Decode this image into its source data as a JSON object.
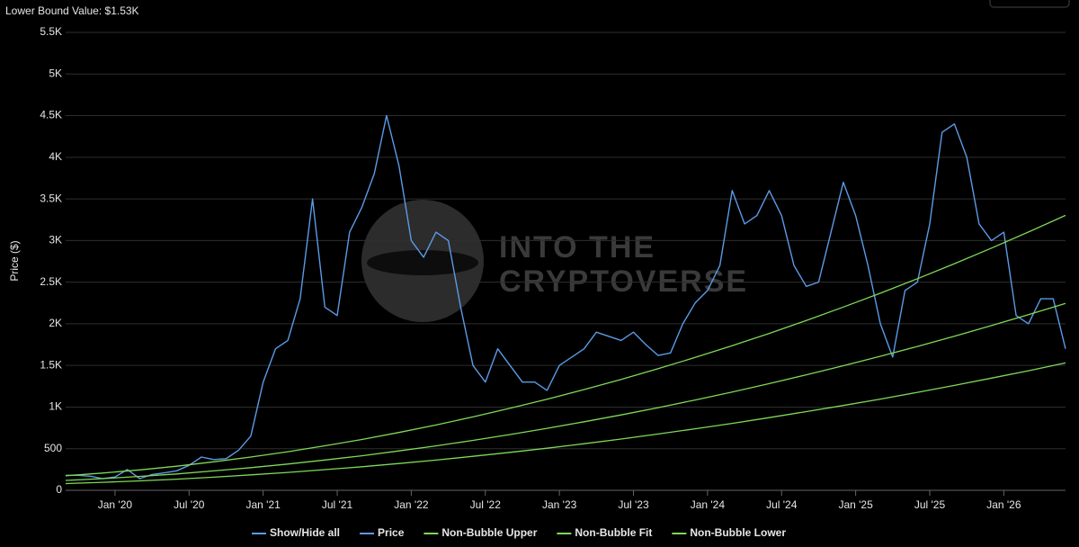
{
  "chart_data": {
    "type": "line",
    "title": "Lower Bound Value: $1.53K",
    "ylabel": "Price ($)",
    "watermark": [
      "INTO THE",
      "CRYPTOVERSE"
    ],
    "legend_toggle_label": "Show/Hide all",
    "legend_position": "bottom",
    "grid": true,
    "xlim": [
      "2019-09",
      "2026-06"
    ],
    "xticks": [
      {
        "value": "2020-01",
        "label": "Jan '20"
      },
      {
        "value": "2020-07",
        "label": "Jul '20"
      },
      {
        "value": "2021-01",
        "label": "Jan '21"
      },
      {
        "value": "2021-07",
        "label": "Jul '21"
      },
      {
        "value": "2022-01",
        "label": "Jan '22"
      },
      {
        "value": "2022-07",
        "label": "Jul '22"
      },
      {
        "value": "2023-01",
        "label": "Jan '23"
      },
      {
        "value": "2023-07",
        "label": "Jul '23"
      },
      {
        "value": "2024-01",
        "label": "Jan '24"
      },
      {
        "value": "2024-07",
        "label": "Jul '24"
      },
      {
        "value": "2025-01",
        "label": "Jan '25"
      },
      {
        "value": "2025-07",
        "label": "Jul '25"
      },
      {
        "value": "2026-01",
        "label": "Jan '26"
      }
    ],
    "ylim": [
      0,
      5500
    ],
    "yticks": [
      0,
      500,
      {
        "value": 1000,
        "label": "1K"
      },
      {
        "value": 1500,
        "label": "1.5K"
      },
      {
        "value": 2000,
        "label": "2K"
      },
      {
        "value": 2500,
        "label": "2.5K"
      },
      {
        "value": 3000,
        "label": "3K"
      },
      {
        "value": 3500,
        "label": "3.5K"
      },
      {
        "value": 4000,
        "label": "4K"
      },
      {
        "value": 4500,
        "label": "4.5K"
      },
      {
        "value": 5000,
        "label": "5K"
      },
      {
        "value": 5500,
        "label": "5.5K"
      }
    ],
    "series": [
      {
        "name": "Price",
        "color": "#5b9be6",
        "x": [
          "2019-09",
          "2019-10",
          "2019-11",
          "2019-12",
          "2020-01",
          "2020-02",
          "2020-03",
          "2020-04",
          "2020-05",
          "2020-06",
          "2020-07",
          "2020-08",
          "2020-09",
          "2020-10",
          "2020-11",
          "2020-12",
          "2021-01",
          "2021-02",
          "2021-03",
          "2021-04",
          "2021-05",
          "2021-06",
          "2021-07",
          "2021-08",
          "2021-09",
          "2021-10",
          "2021-11",
          "2021-12",
          "2022-01",
          "2022-02",
          "2022-03",
          "2022-04",
          "2022-05",
          "2022-06",
          "2022-07",
          "2022-08",
          "2022-09",
          "2022-10",
          "2022-11",
          "2022-12",
          "2023-01",
          "2023-02",
          "2023-03",
          "2023-04",
          "2023-05",
          "2023-06",
          "2023-07",
          "2023-08",
          "2023-09",
          "2023-10",
          "2023-11",
          "2023-12",
          "2024-01",
          "2024-02",
          "2024-03",
          "2024-04",
          "2024-05",
          "2024-06",
          "2024-07",
          "2024-08",
          "2024-09",
          "2024-10",
          "2024-11",
          "2024-12",
          "2025-01",
          "2025-02",
          "2025-03",
          "2025-04",
          "2025-05",
          "2025-06",
          "2025-07",
          "2025-08",
          "2025-09",
          "2025-10",
          "2025-11",
          "2025-12",
          "2026-01",
          "2026-02",
          "2026-03",
          "2026-04",
          "2026-05",
          "2026-06"
        ],
        "values": [
          180,
          180,
          170,
          140,
          160,
          250,
          140,
          190,
          210,
          235,
          300,
          400,
          370,
          380,
          480,
          650,
          1300,
          1700,
          1800,
          2300,
          3500,
          2200,
          2100,
          3100,
          3400,
          3800,
          4500,
          3900,
          3000,
          2800,
          3100,
          3000,
          2200,
          1500,
          1300,
          1700,
          1500,
          1300,
          1300,
          1200,
          1500,
          1600,
          1700,
          1900,
          1850,
          1800,
          1900,
          1750,
          1620,
          1650,
          2000,
          2250,
          2400,
          2700,
          3600,
          3200,
          3300,
          3600,
          3300,
          2700,
          2450,
          2500,
          3100,
          3700,
          3300,
          2700,
          2000,
          1600,
          2400,
          2500,
          3200,
          4300,
          4400,
          4000,
          3200,
          3000,
          3100,
          2100,
          2000,
          2300,
          2300,
          1700
        ]
      },
      {
        "name": "Non-Bubble Upper",
        "color": "#7ed957",
        "x": [
          "2019-09",
          "2019-12",
          "2020-03",
          "2020-06",
          "2020-09",
          "2020-12",
          "2021-03",
          "2021-06",
          "2021-09",
          "2021-12",
          "2022-03",
          "2022-06",
          "2022-09",
          "2022-12",
          "2023-03",
          "2023-06",
          "2023-09",
          "2023-12",
          "2024-03",
          "2024-06",
          "2024-09",
          "2024-12",
          "2025-03",
          "2025-06",
          "2025-09",
          "2025-12",
          "2026-03",
          "2026-06"
        ],
        "values": [
          175,
          207,
          245,
          290,
          342,
          400,
          464,
          535,
          611,
          695,
          785,
          882,
          985,
          1094,
          1210,
          1332,
          1461,
          1596,
          1737,
          1885,
          2040,
          2201,
          2368,
          2541,
          2722,
          2909,
          3102,
          3302
        ]
      },
      {
        "name": "Non-Bubble Fit",
        "color": "#7ed957",
        "x": [
          "2019-09",
          "2019-12",
          "2020-03",
          "2020-06",
          "2020-09",
          "2020-12",
          "2021-03",
          "2021-06",
          "2021-09",
          "2021-12",
          "2022-03",
          "2022-06",
          "2022-09",
          "2022-12",
          "2023-03",
          "2023-06",
          "2023-09",
          "2023-12",
          "2024-03",
          "2024-06",
          "2024-09",
          "2024-12",
          "2025-03",
          "2025-06",
          "2025-09",
          "2025-12",
          "2026-03",
          "2026-06"
        ],
        "values": [
          119,
          141,
          167,
          197,
          233,
          272,
          316,
          364,
          415,
          473,
          534,
          600,
          670,
          744,
          823,
          906,
          993,
          1085,
          1181,
          1282,
          1387,
          1497,
          1610,
          1728,
          1851,
          1978,
          2109,
          2245
        ]
      },
      {
        "name": "Non-Bubble Lower",
        "color": "#7ed957",
        "x": [
          "2019-09",
          "2019-12",
          "2020-03",
          "2020-06",
          "2020-09",
          "2020-12",
          "2021-03",
          "2021-06",
          "2021-09",
          "2021-12",
          "2022-03",
          "2022-06",
          "2022-09",
          "2022-12",
          "2023-03",
          "2023-06",
          "2023-09",
          "2023-12",
          "2024-03",
          "2024-06",
          "2024-09",
          "2024-12",
          "2025-03",
          "2025-06",
          "2025-09",
          "2025-12",
          "2026-03",
          "2026-06"
        ],
        "values": [
          81,
          96,
          113,
          134,
          158,
          186,
          215,
          248,
          283,
          322,
          363,
          408,
          456,
          506,
          560,
          616,
          676,
          739,
          804,
          873,
          945,
          1019,
          1096,
          1177,
          1260,
          1347,
          1436,
          1530
        ]
      }
    ]
  }
}
